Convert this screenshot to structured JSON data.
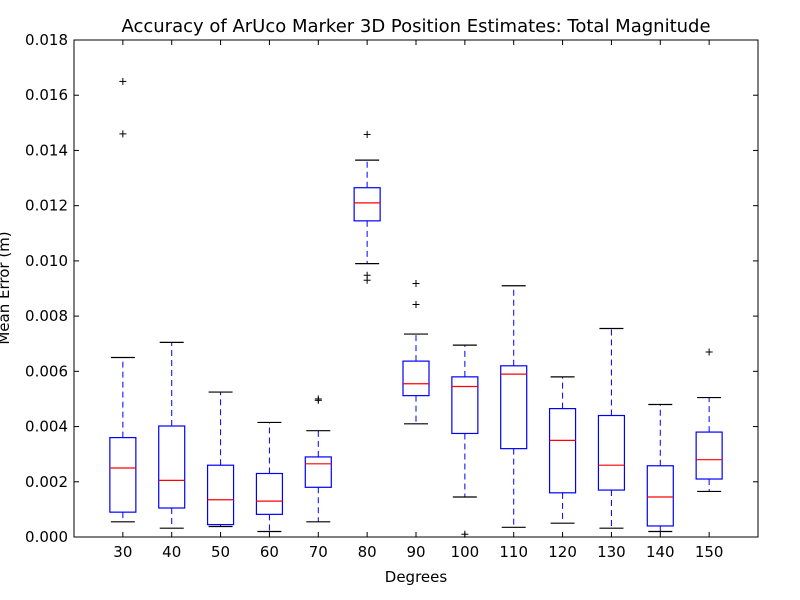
{
  "chart_data": {
    "type": "box",
    "title": "Accuracy of ArUco Marker 3D Position Estimates: Total Magnitude",
    "xlabel": "Degrees",
    "ylabel": "Mean Error (m)",
    "ylim": [
      0,
      0.018
    ],
    "yticks": [
      "0.000",
      "0.002",
      "0.004",
      "0.006",
      "0.008",
      "0.010",
      "0.012",
      "0.014",
      "0.016",
      "0.018"
    ],
    "grid": false,
    "colors": {
      "box": "#0000ff",
      "median": "#ff0000",
      "whisker": "#0000ff",
      "cap": "#000000",
      "flier": "#000000"
    },
    "boxes": [
      {
        "category": "30",
        "whisker_low": 0.00055,
        "q1": 0.0009,
        "median": 0.0025,
        "q3": 0.0036,
        "whisker_high": 0.0065,
        "outliers": [
          0.0146,
          0.0165
        ]
      },
      {
        "category": "40",
        "whisker_low": 0.00032,
        "q1": 0.00105,
        "median": 0.00205,
        "q3": 0.00402,
        "whisker_high": 0.00705,
        "outliers": []
      },
      {
        "category": "50",
        "whisker_low": 0.00038,
        "q1": 0.00045,
        "median": 0.00135,
        "q3": 0.0026,
        "whisker_high": 0.00525,
        "outliers": []
      },
      {
        "category": "60",
        "whisker_low": 0.0002,
        "q1": 0.00082,
        "median": 0.0013,
        "q3": 0.0023,
        "whisker_high": 0.00415,
        "outliers": []
      },
      {
        "category": "70",
        "whisker_low": 0.00055,
        "q1": 0.0018,
        "median": 0.00265,
        "q3": 0.0029,
        "whisker_high": 0.00385,
        "outliers": [
          0.00495,
          0.005
        ]
      },
      {
        "category": "80",
        "whisker_low": 0.0099,
        "q1": 0.01145,
        "median": 0.0121,
        "q3": 0.01265,
        "whisker_high": 0.01365,
        "outliers": [
          0.0093,
          0.00948,
          0.01458
        ]
      },
      {
        "category": "90",
        "whisker_low": 0.0041,
        "q1": 0.00512,
        "median": 0.00555,
        "q3": 0.00637,
        "whisker_high": 0.00735,
        "outliers": [
          0.00842,
          0.00918
        ]
      },
      {
        "category": "100",
        "whisker_low": 0.00145,
        "q1": 0.00375,
        "median": 0.00545,
        "q3": 0.0058,
        "whisker_high": 0.00695,
        "outliers": [
          0.0001
        ]
      },
      {
        "category": "110",
        "whisker_low": 0.00035,
        "q1": 0.0032,
        "median": 0.0059,
        "q3": 0.0062,
        "whisker_high": 0.0091,
        "outliers": []
      },
      {
        "category": "120",
        "whisker_low": 0.0005,
        "q1": 0.0016,
        "median": 0.0035,
        "q3": 0.00465,
        "whisker_high": 0.0058,
        "outliers": []
      },
      {
        "category": "130",
        "whisker_low": 0.00032,
        "q1": 0.0017,
        "median": 0.0026,
        "q3": 0.0044,
        "whisker_high": 0.00755,
        "outliers": []
      },
      {
        "category": "140",
        "whisker_low": 0.0002,
        "q1": 0.0004,
        "median": 0.00145,
        "q3": 0.00258,
        "whisker_high": 0.0048,
        "outliers": []
      },
      {
        "category": "150",
        "whisker_low": 0.00165,
        "q1": 0.0021,
        "median": 0.0028,
        "q3": 0.0038,
        "whisker_high": 0.00505,
        "outliers": [
          0.0067
        ]
      }
    ]
  }
}
